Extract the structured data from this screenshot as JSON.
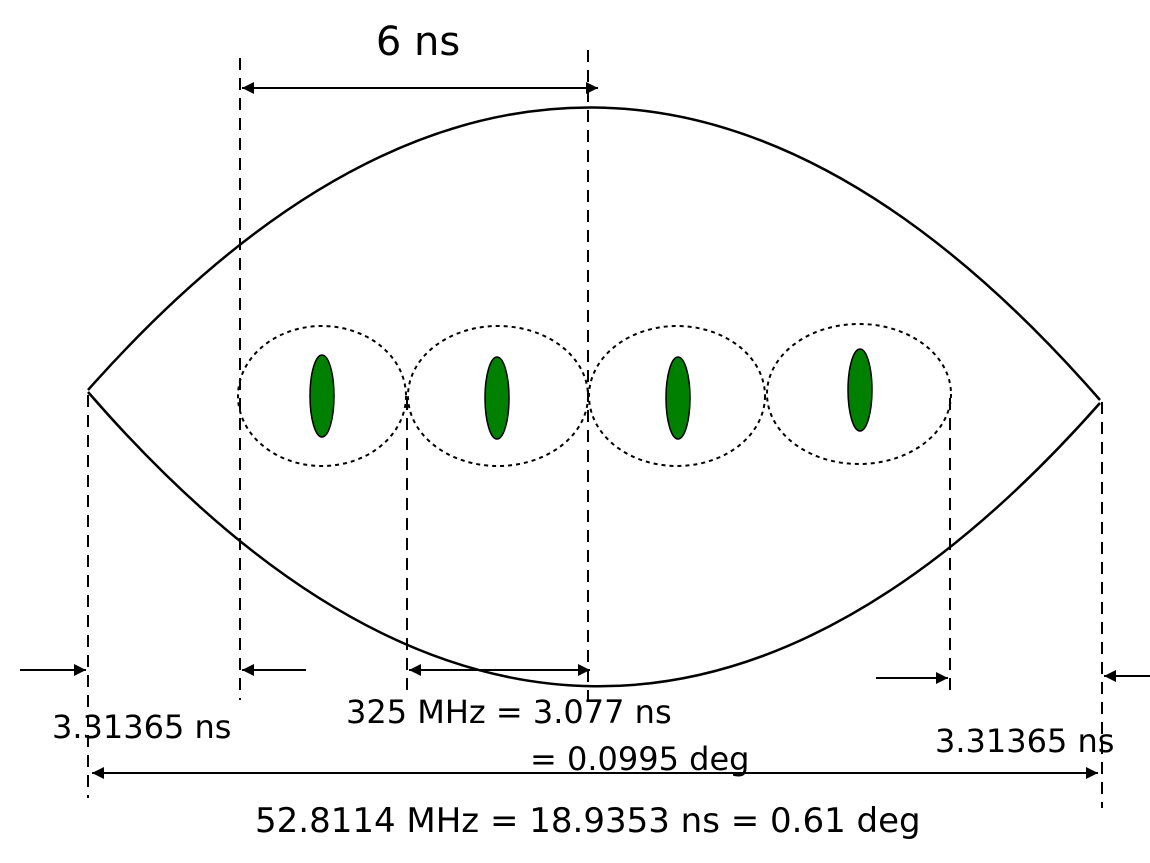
{
  "labels": {
    "top_span": "6 ns",
    "left_gap": "3.31365 ns",
    "right_gap": "3.31365 ns",
    "mid_line1": "325 MHz = 3.077 ns",
    "mid_line2": "= 0.0995 deg",
    "bottom_span": "52.8114 MHz = 18.9353 ns = 0.61 deg"
  },
  "colors": {
    "line": "#000000",
    "bunch_fill": "#008000",
    "background": "#ffffff"
  },
  "bunch_count": 4
}
